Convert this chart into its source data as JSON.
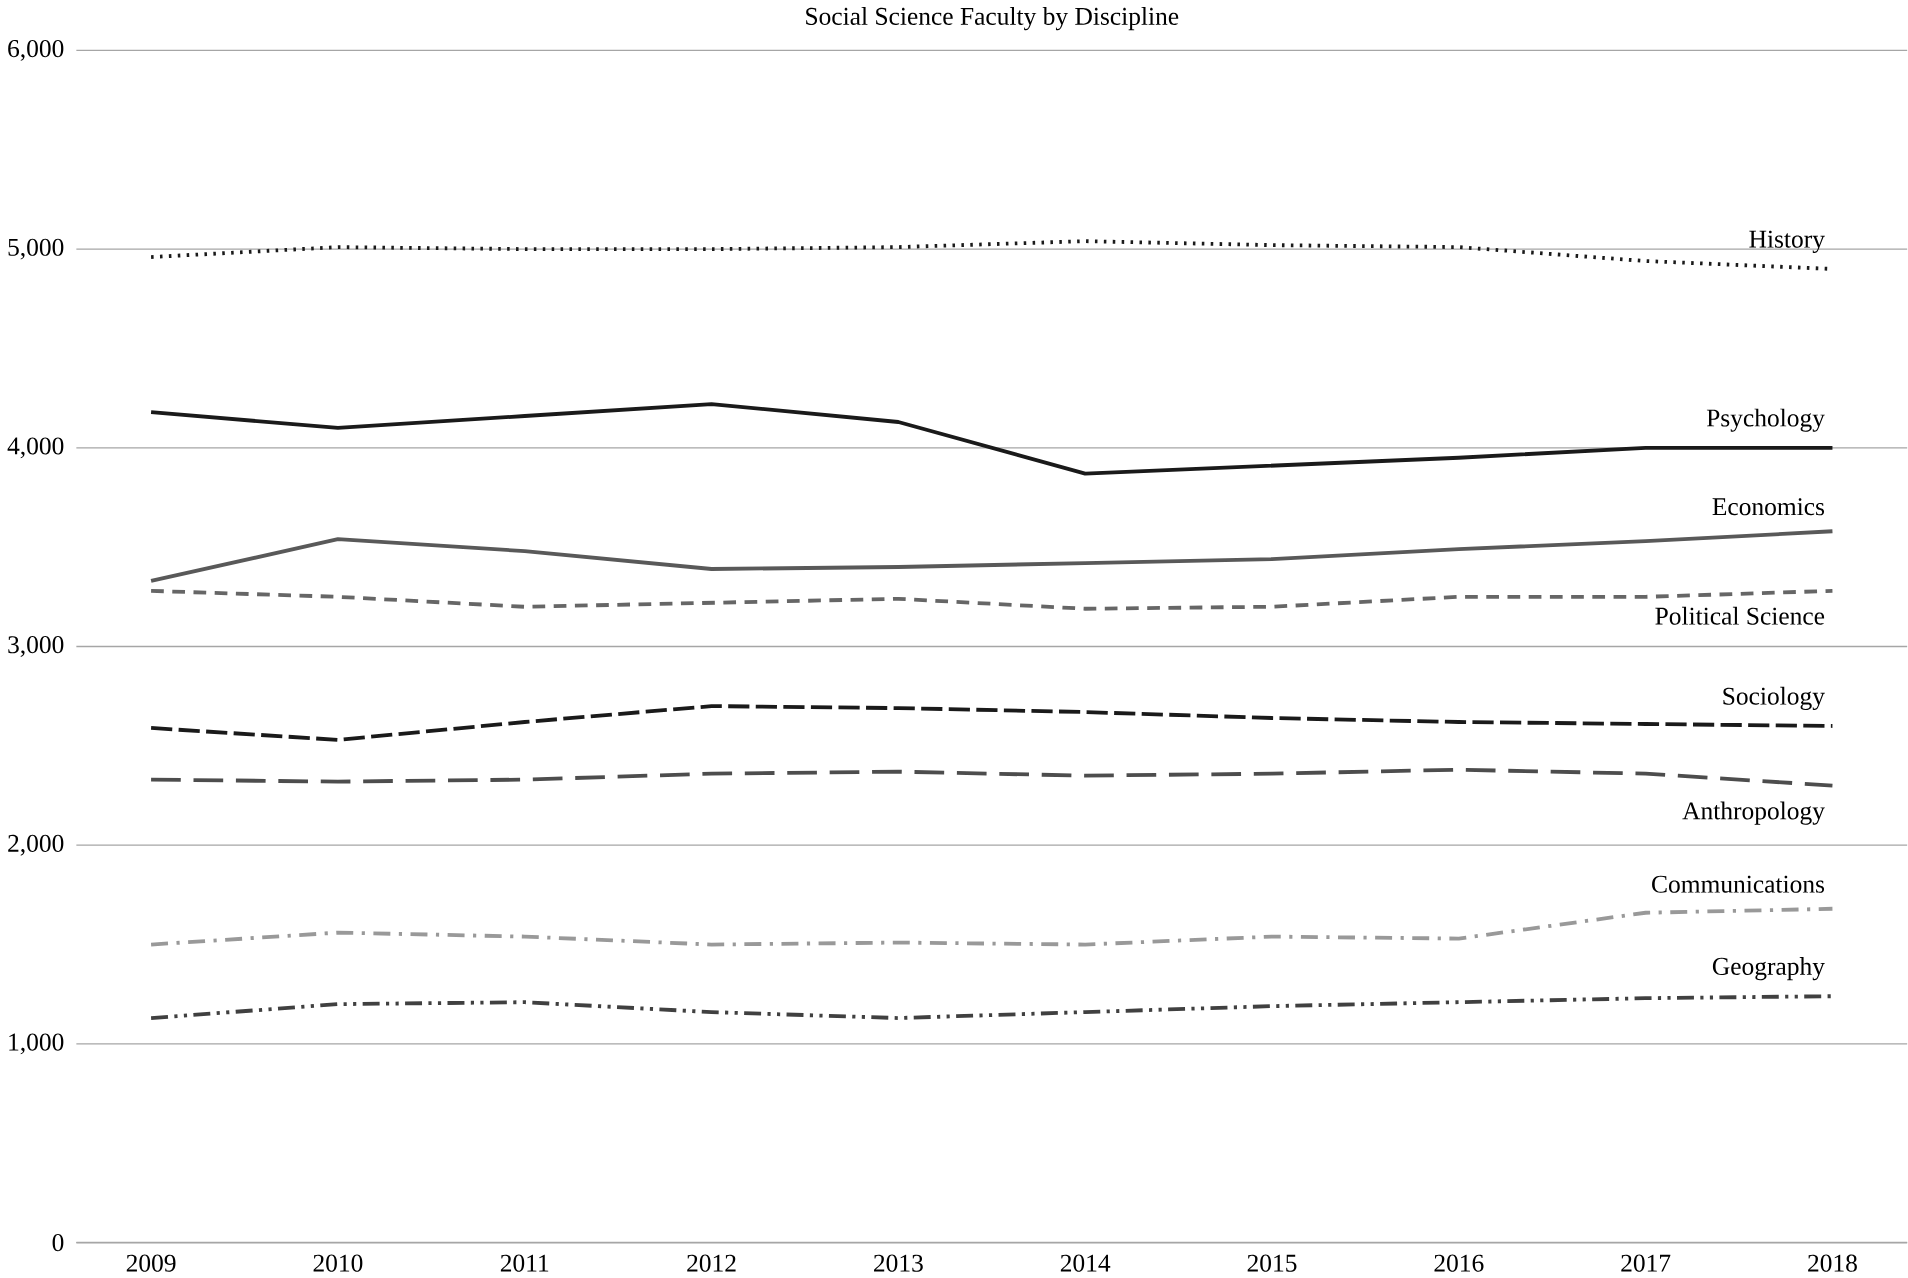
{
  "chart_data": {
    "type": "line",
    "title": "Social Science Faculty by Discipline",
    "categories": [
      "2009",
      "2010",
      "2011",
      "2012",
      "2013",
      "2014",
      "2015",
      "2016",
      "2017",
      "2018"
    ],
    "ylim": [
      0,
      6000
    ],
    "yticks": [
      {
        "value": 0,
        "label": "0"
      },
      {
        "value": 1000,
        "label": "1,000"
      },
      {
        "value": 2000,
        "label": "2,000"
      },
      {
        "value": 3000,
        "label": "3,000"
      },
      {
        "value": 4000,
        "label": "4,000"
      },
      {
        "value": 5000,
        "label": "5,000"
      },
      {
        "value": 6000,
        "label": "6,000"
      }
    ],
    "grid": "y",
    "series": [
      {
        "name": "History",
        "color": "#1a1a1a",
        "line_style": "dotted",
        "values": [
          4960,
          5010,
          5000,
          5000,
          5010,
          5040,
          5020,
          5010,
          4940,
          4900
        ]
      },
      {
        "name": "Psychology",
        "color": "#1a1a1a",
        "line_style": "solid",
        "values": [
          4180,
          4100,
          4160,
          4220,
          4130,
          3870,
          3910,
          3950,
          4000,
          4000
        ]
      },
      {
        "name": "Economics",
        "color": "#595959",
        "line_style": "solid",
        "values": [
          3330,
          3540,
          3480,
          3390,
          3400,
          3420,
          3440,
          3490,
          3530,
          3580
        ]
      },
      {
        "name": "Political Science",
        "color": "#666666",
        "line_style": "dashed",
        "values": [
          3280,
          3250,
          3200,
          3220,
          3240,
          3190,
          3200,
          3250,
          3250,
          3280
        ]
      },
      {
        "name": "Sociology",
        "color": "#1a1a1a",
        "line_style": "loosely dashed",
        "values": [
          2590,
          2530,
          2620,
          2700,
          2690,
          2670,
          2640,
          2620,
          2610,
          2600
        ]
      },
      {
        "name": "Anthropology",
        "color": "#4d4d4d",
        "line_style": "long dashed",
        "values": [
          2330,
          2320,
          2330,
          2360,
          2370,
          2350,
          2360,
          2380,
          2360,
          2300
        ]
      },
      {
        "name": "Communications",
        "color": "#999999",
        "line_style": "dashdotted",
        "values": [
          1500,
          1560,
          1540,
          1500,
          1510,
          1500,
          1540,
          1530,
          1660,
          1680
        ]
      },
      {
        "name": "Geography",
        "color": "#404040",
        "line_style": "dashdotdotted",
        "values": [
          1130,
          1200,
          1210,
          1160,
          1130,
          1160,
          1190,
          1210,
          1230,
          1240
        ]
      }
    ]
  }
}
